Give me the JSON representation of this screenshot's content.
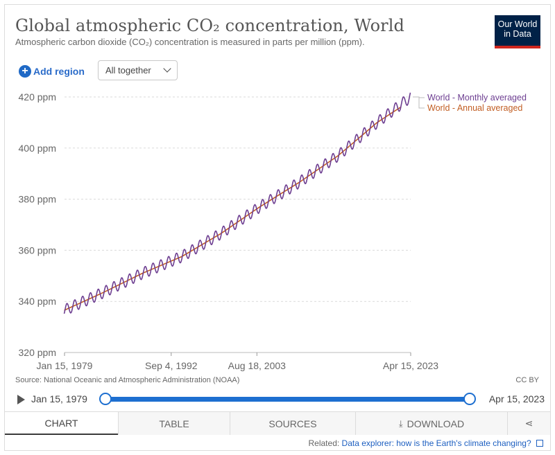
{
  "header": {
    "title": "Global atmospheric CO₂ concentration, World",
    "subtitle": "Atmospheric carbon dioxide (CO₂) concentration is measured in parts per million (ppm).",
    "logo_line1": "Our World",
    "logo_line2": "in Data"
  },
  "controls": {
    "add_region": "Add region",
    "selector_value": "All together"
  },
  "chart_data": {
    "type": "line",
    "title": "Global atmospheric CO₂ concentration, World",
    "xlabel": "",
    "ylabel": "",
    "x_ticks": [
      "Jan 15, 1979",
      "Sep 4, 1992",
      "Aug 18, 2003",
      "Apr 15, 2023"
    ],
    "y_ticks": [
      "320 ppm",
      "340 ppm",
      "360 ppm",
      "380 ppm",
      "400 ppm",
      "420 ppm"
    ],
    "ylim": [
      320,
      420
    ],
    "xlim_years": [
      1979.04,
      2023.29
    ],
    "grid": "horizontal dashed",
    "legend_placement": "right",
    "series": [
      {
        "name": "World - Monthly averaged",
        "color": "#6d3e91",
        "seasonal_amplitude_ppm": 2.2,
        "x_years": [
          1979,
          1984,
          1989,
          1994,
          1999,
          2004,
          2009,
          2014,
          2019,
          2023.29
        ],
        "values": [
          336.5,
          343.5,
          351.0,
          357.5,
          366.5,
          377.0,
          386.5,
          397.0,
          410.0,
          420.0
        ]
      },
      {
        "name": "World - Annual averaged",
        "color": "#c15d22",
        "x_years": [
          1979,
          1984,
          1989,
          1994,
          1999,
          2004,
          2009,
          2014,
          2019,
          2022.5
        ],
        "values": [
          336.5,
          343.5,
          351.0,
          357.5,
          366.5,
          377.0,
          386.5,
          397.0,
          410.0,
          417.0
        ]
      }
    ]
  },
  "footer": {
    "source": "Source: National Oceanic and Atmospheric Administration (NOAA)",
    "license": "CC BY",
    "timeline_start": "Jan 15, 1979",
    "timeline_end": "Apr 15, 2023",
    "tabs": [
      "CHART",
      "TABLE",
      "SOURCES",
      "DOWNLOAD"
    ],
    "related_prefix": "Related:",
    "related_link": "Data explorer: how is the Earth's climate changing?"
  }
}
